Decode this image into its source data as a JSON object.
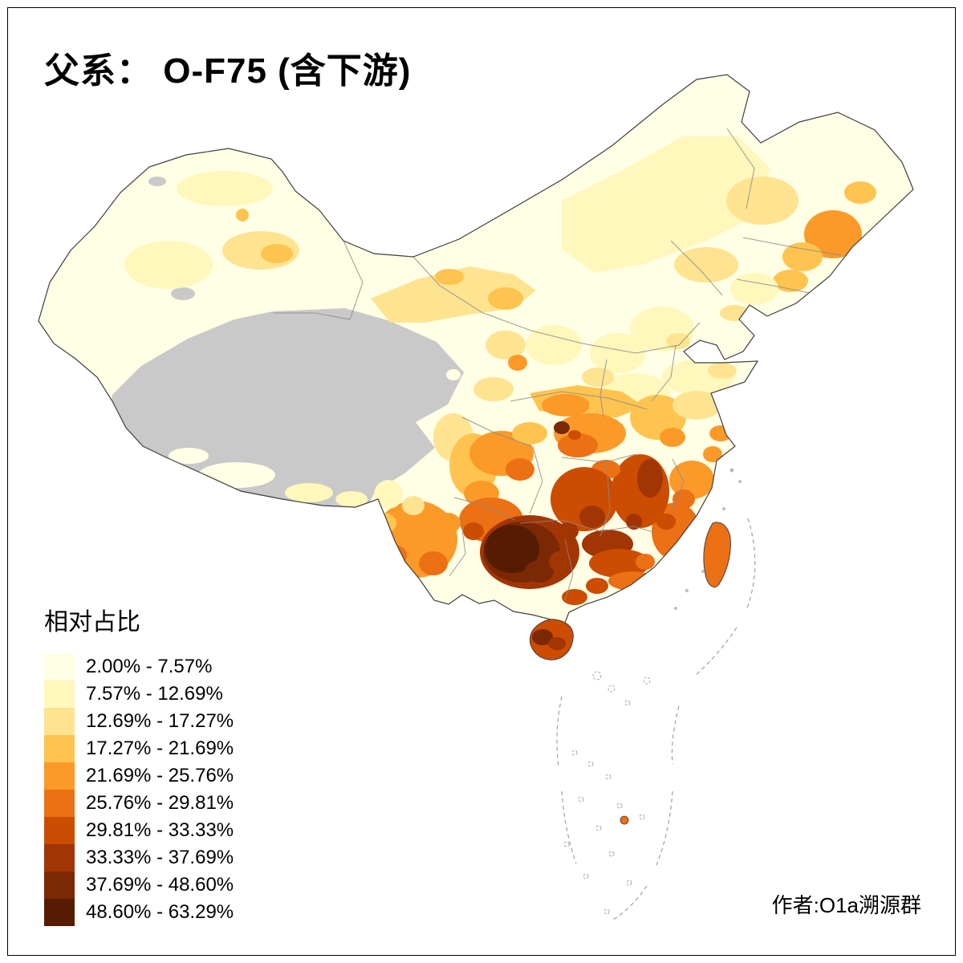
{
  "title": "父系： O-F75 (含下游)",
  "attribution": "作者:O1a溯源群",
  "legend": {
    "title": "相对占比",
    "no_data_color": "#C9C9C9",
    "classes": [
      {
        "label": "2.00% - 7.57%",
        "color": "#FFFFE5"
      },
      {
        "label": "7.57% - 12.69%",
        "color": "#FFF7BC"
      },
      {
        "label": "12.69% - 17.27%",
        "color": "#FEE391"
      },
      {
        "label": "17.27% - 21.69%",
        "color": "#FEC44F"
      },
      {
        "label": "21.69% - 25.76%",
        "color": "#FB9A29"
      },
      {
        "label": "25.76% - 29.81%",
        "color": "#EC7014"
      },
      {
        "label": "29.81% - 33.33%",
        "color": "#CC4C02"
      },
      {
        "label": "33.33% - 37.69%",
        "color": "#A13503"
      },
      {
        "label": "37.69% - 48.60%",
        "color": "#7B2804"
      },
      {
        "label": "48.60% - 63.29%",
        "color": "#551C02"
      }
    ]
  }
}
